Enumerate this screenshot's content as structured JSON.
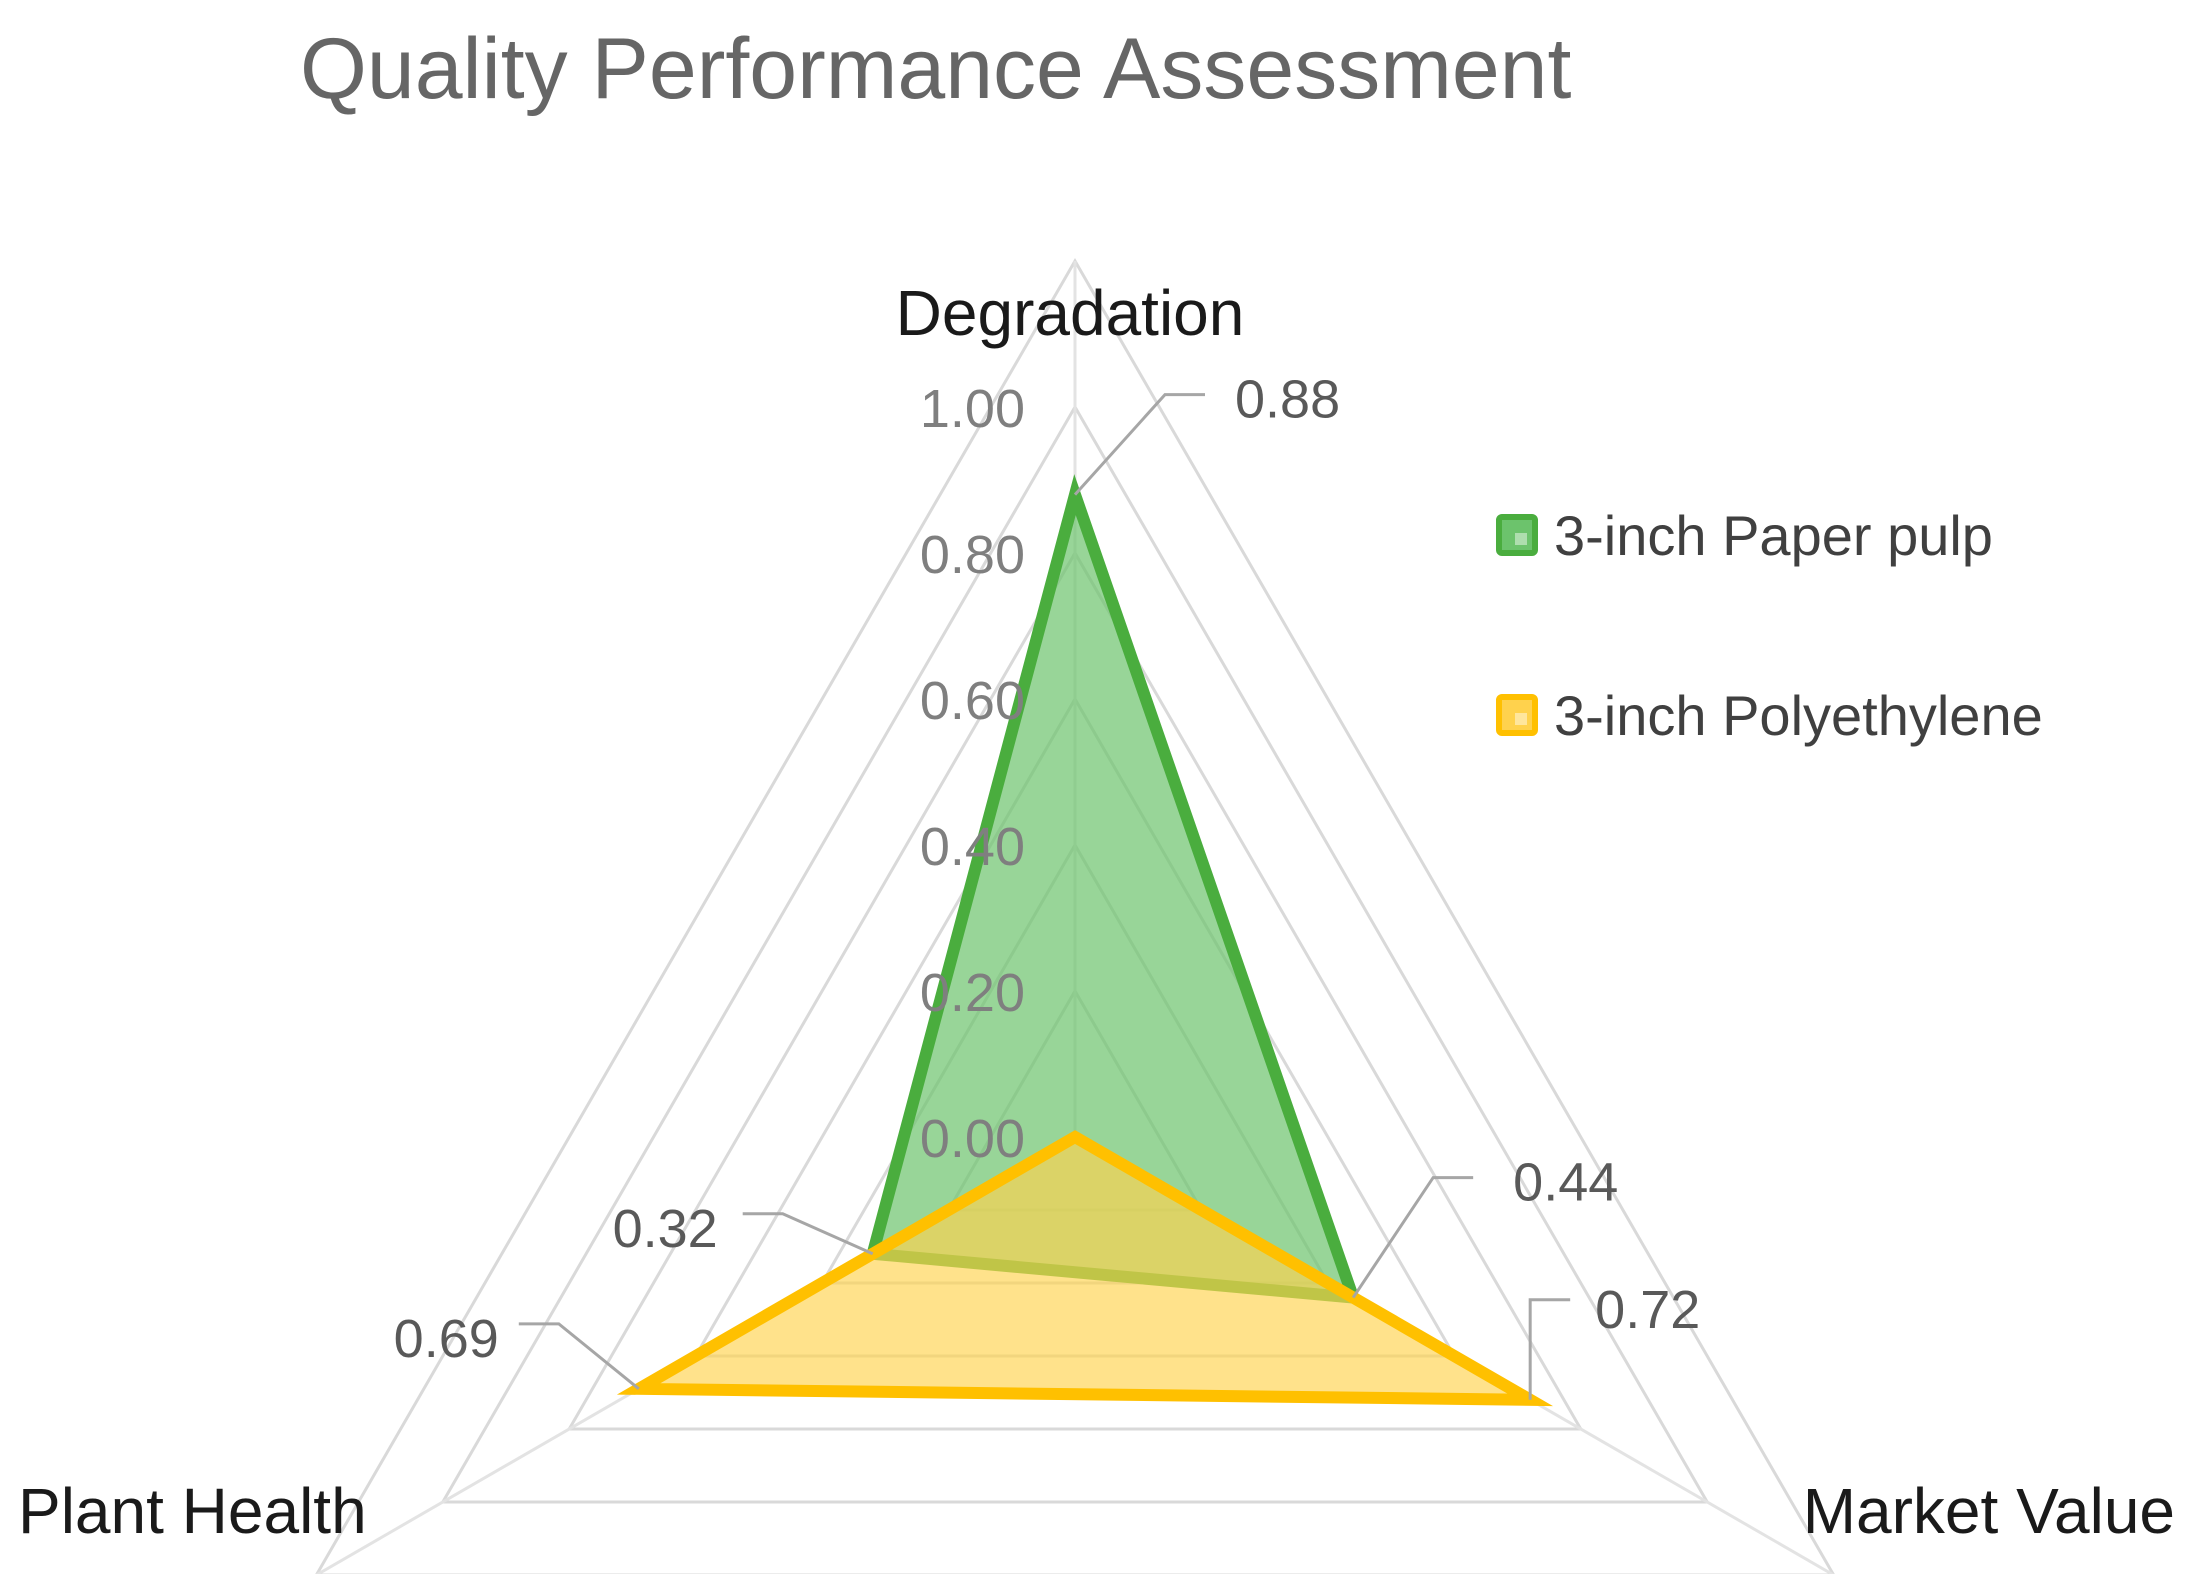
{
  "chart_data": {
    "type": "radar",
    "title": "Quality Performance  Assessment",
    "axes": [
      "Degradation",
      "Market Value",
      "Plant Health"
    ],
    "ticks": [
      "1.00",
      "0.80",
      "0.60",
      "0.40",
      "0.20",
      "0.00"
    ],
    "tick_values": [
      1.0,
      0.8,
      0.6,
      0.4,
      0.2,
      0.0
    ],
    "range": [
      0,
      1
    ],
    "grid": true,
    "legend_position": "right",
    "series": [
      {
        "name": "3-inch Paper pulp",
        "values": [
          0.88,
          0.44,
          0.32
        ],
        "labels": [
          "0.88",
          "0.44",
          "0.32"
        ],
        "color": "#4aad3e",
        "fill": "#6cc36c"
      },
      {
        "name": "3-inch Polyethylene",
        "values": [
          0.0,
          0.72,
          0.69
        ],
        "labels": [
          "",
          "0.72",
          "0.69"
        ],
        "color": "#ffc000",
        "fill": "#ffd24d"
      }
    ]
  }
}
